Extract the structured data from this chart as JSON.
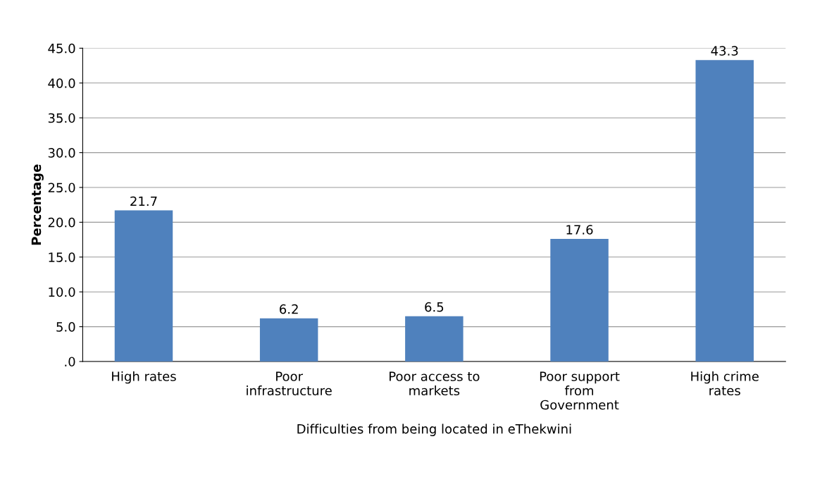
{
  "chart_data": {
    "type": "bar",
    "ylabel": "Percentage",
    "xlabel": "Difficulties from being located in eThekwini",
    "categories": [
      "High rates",
      "Poor\ninfrastructure",
      "Poor access to\nmarkets",
      "Poor support\nfrom\nGovernment",
      "High crime\nrates"
    ],
    "values": [
      21.7,
      6.2,
      6.5,
      17.6,
      43.3
    ],
    "color": "#4f81bd",
    "ylim": [
      0,
      45
    ],
    "yticks": [
      {
        "value": 0,
        "label": ".0"
      },
      {
        "value": 5,
        "label": "5.0"
      },
      {
        "value": 10,
        "label": "10.0"
      },
      {
        "value": 15,
        "label": "15.0"
      },
      {
        "value": 20,
        "label": "20.0"
      },
      {
        "value": 25,
        "label": "25.0"
      },
      {
        "value": 30,
        "label": "30.0"
      },
      {
        "value": 35,
        "label": "35.0"
      },
      {
        "value": 40,
        "label": "40.0"
      },
      {
        "value": 45,
        "label": "45.0"
      }
    ],
    "grid": "y",
    "data_labels": true
  }
}
